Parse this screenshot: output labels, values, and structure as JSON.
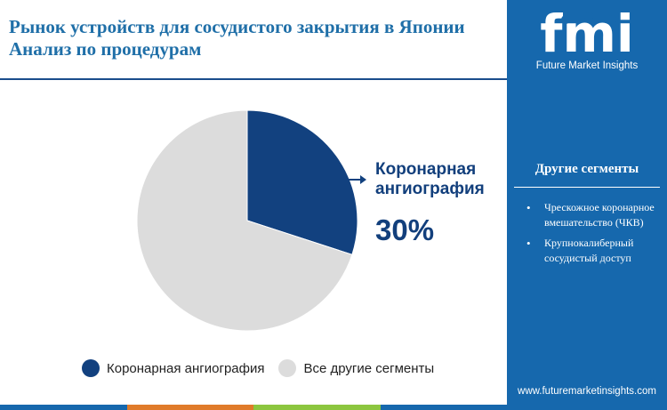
{
  "title_line1": "Рынок устройств для сосудистого закрытия в Японии",
  "title_line2": "Анализ по процедурам",
  "chart_data": {
    "type": "pie",
    "slices": [
      {
        "name": "Коронарная ангиография",
        "value": 30
      },
      {
        "name": "Все другие сегменты",
        "value": 70
      }
    ],
    "callout": {
      "label": "Коронарная ангиография",
      "value_text": "30%"
    },
    "legend": [
      "Коронарная ангиография",
      "Все другие сегменты"
    ],
    "legend_placement": "bottom",
    "colors": {
      "highlight": "#12417f",
      "others": "#dcdcdc"
    }
  },
  "callout_line1": "Коронарная",
  "callout_line2": "ангиография",
  "sidebar": {
    "logo_text": "fmi",
    "logo_subtitle": "Future Market Insights",
    "heading": "Другие сегменты",
    "items": [
      "Чрескожное коронарное вмешательство (ЧКВ)",
      "Крупнокалиберный сосудистый доступ"
    ],
    "website": "www.futuremarketinsights.com",
    "background": "#1668ad"
  },
  "bottom_bar_colors": [
    "#1668ad",
    "#e07b2a",
    "#8cc63f",
    "#1668ad"
  ]
}
